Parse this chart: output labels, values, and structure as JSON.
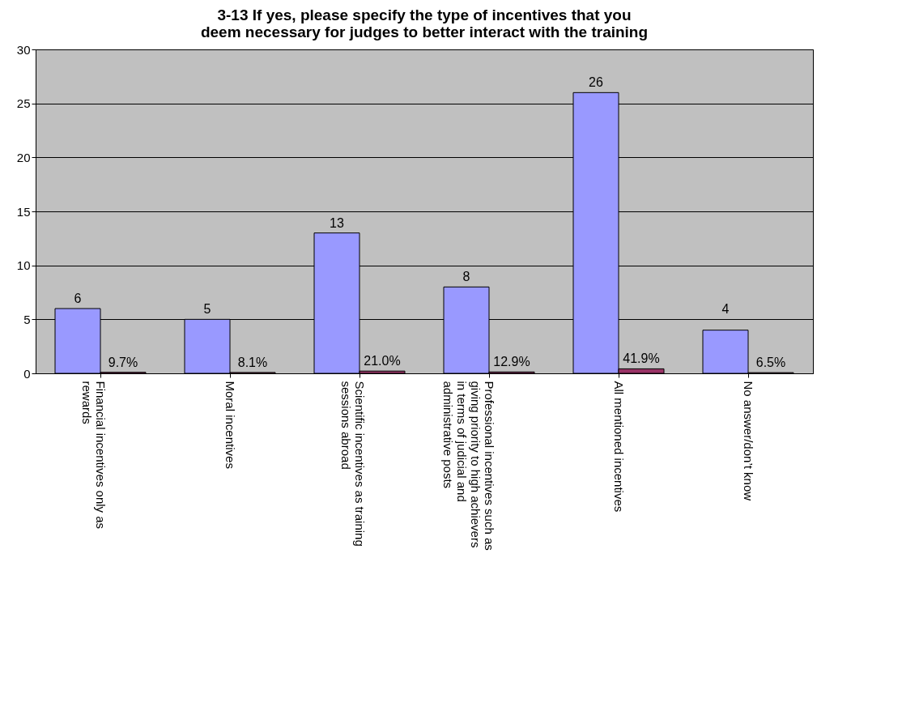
{
  "chart_data": {
    "type": "bar",
    "title": "3-13 If yes, please specify the type of incentives that you deem necessary for judges to better interact with the training",
    "categories": [
      "Financial incentives only as rewards",
      "Moral incentives",
      "Scientific incentives as training sessions abroad",
      "Professional incentives such as giving priority to high achievers in terms of judicial and administrative posts",
      "All mentioned incentives",
      "No answer/don’t know"
    ],
    "series": [
      {
        "color": "#9999ff",
        "values": [
          6,
          5,
          13,
          8,
          26,
          4
        ],
        "value_labels": [
          "6",
          "5",
          "13",
          "8",
          "26",
          "4"
        ]
      },
      {
        "color": "#993366",
        "values": [
          0.097,
          0.081,
          0.21,
          0.129,
          0.419,
          0.065
        ],
        "value_labels": [
          "9.7%",
          "8.1%",
          "21.0%",
          "12.9%",
          "41.9%",
          "6.5%"
        ]
      }
    ],
    "ylim": [
      0,
      30
    ],
    "yticks": [
      0,
      5,
      10,
      15,
      20,
      25,
      30
    ],
    "grid": "y",
    "legend": false
  }
}
